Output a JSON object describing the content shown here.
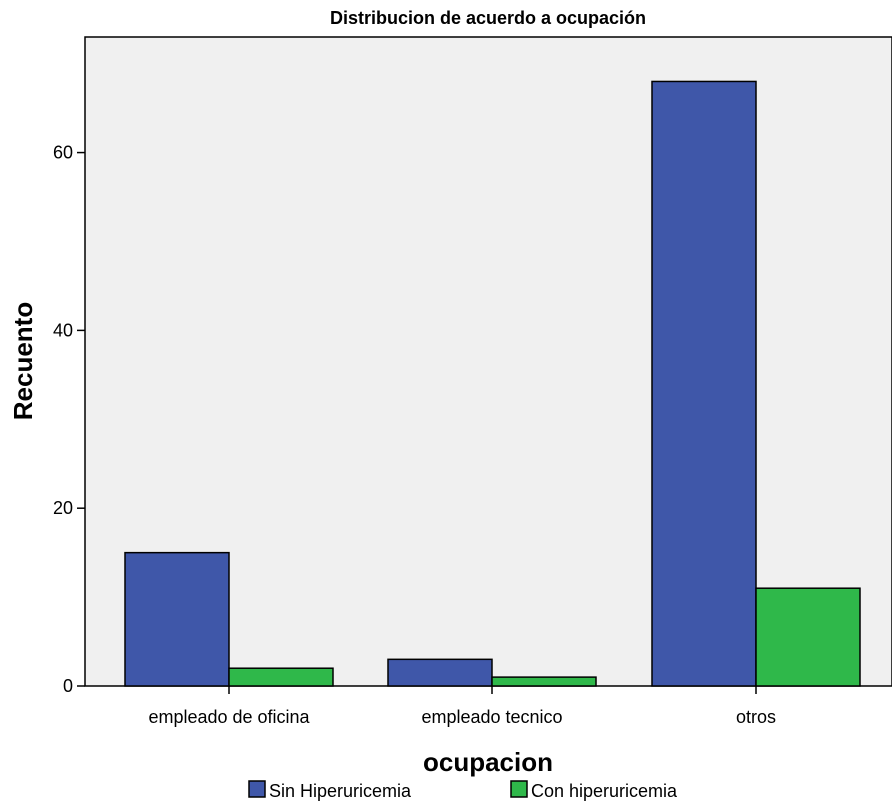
{
  "chart_data": {
    "type": "bar",
    "title": "Distribucion de acuerdo a ocupación",
    "xlabel": "ocupacion",
    "ylabel": "Recuento",
    "categories": [
      "empleado de oficina",
      "empleado tecnico",
      "otros"
    ],
    "series": [
      {
        "name": "Sin Hiperuricemia",
        "values": [
          15,
          3,
          68
        ],
        "color": "#3f57a9"
      },
      {
        "name": "Con hiperuricemia",
        "values": [
          2,
          1,
          11
        ],
        "color": "#2fb84a"
      }
    ],
    "ylim": [
      0,
      73
    ],
    "yticks": [
      0,
      20,
      40,
      60
    ],
    "grid": false,
    "legend_position": "bottom",
    "plot_background": "#f0f0f0"
  }
}
